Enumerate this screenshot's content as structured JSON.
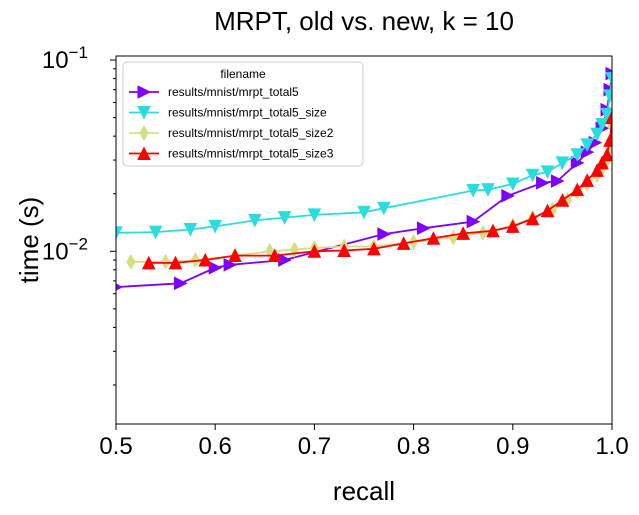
{
  "chart_data": {
    "type": "line",
    "title": "MRPT, old vs. new, k = 10",
    "xlabel": "recall",
    "ylabel": "time (s)",
    "xlim": [
      0.5,
      1.0
    ],
    "ylim": [
      0.00125,
      0.105
    ],
    "yscale": "log",
    "grid": false,
    "legend_position": "top-left",
    "legend_title": "filename",
    "x_ticks": [
      "0.5",
      "0.6",
      "0.7",
      "0.8",
      "0.9",
      "1.0"
    ],
    "y_ticks": {
      "base": "10",
      "exp_low": "−2",
      "exp_high": "−1"
    },
    "series": [
      {
        "name": "results/mnist/mrpt_total5",
        "color": "#7f00ff",
        "marker": "triangle-right",
        "points": [
          [
            0.5,
            0.0065
          ],
          [
            0.565,
            0.0068
          ],
          [
            0.6,
            0.0082
          ],
          [
            0.615,
            0.0085
          ],
          [
            0.67,
            0.009
          ],
          [
            0.77,
            0.0123
          ],
          [
            0.81,
            0.0132
          ],
          [
            0.86,
            0.0143
          ],
          [
            0.895,
            0.0195
          ],
          [
            0.93,
            0.0228
          ],
          [
            0.945,
            0.0233
          ],
          [
            0.965,
            0.029
          ],
          [
            0.975,
            0.033
          ],
          [
            0.983,
            0.037
          ],
          [
            0.99,
            0.044
          ],
          [
            0.995,
            0.055
          ],
          [
            0.998,
            0.07
          ],
          [
            1.0,
            0.085
          ]
        ]
      },
      {
        "name": "results/mnist/mrpt_total5_size",
        "color": "#2adddd",
        "marker": "triangle-down",
        "points": [
          [
            0.5,
            0.0125
          ],
          [
            0.54,
            0.0126
          ],
          [
            0.575,
            0.013
          ],
          [
            0.6,
            0.0135
          ],
          [
            0.64,
            0.0145
          ],
          [
            0.67,
            0.015
          ],
          [
            0.7,
            0.0155
          ],
          [
            0.75,
            0.016
          ],
          [
            0.77,
            0.0168
          ],
          [
            0.86,
            0.0208
          ],
          [
            0.875,
            0.021
          ],
          [
            0.9,
            0.0225
          ],
          [
            0.92,
            0.025
          ],
          [
            0.935,
            0.026
          ],
          [
            0.95,
            0.029
          ],
          [
            0.965,
            0.032
          ],
          [
            0.975,
            0.036
          ],
          [
            0.985,
            0.041
          ],
          [
            0.99,
            0.046
          ],
          [
            0.995,
            0.052
          ],
          [
            0.998,
            0.065
          ],
          [
            1.0,
            0.08
          ]
        ]
      },
      {
        "name": "results/mnist/mrpt_total5_size2",
        "color": "#d4dd80",
        "marker": "thin-diamond",
        "points": [
          [
            0.515,
            0.0088
          ],
          [
            0.55,
            0.0088
          ],
          [
            0.58,
            0.009
          ],
          [
            0.62,
            0.0095
          ],
          [
            0.655,
            0.01
          ],
          [
            0.68,
            0.0102
          ],
          [
            0.7,
            0.0104
          ],
          [
            0.73,
            0.0106
          ],
          [
            0.76,
            0.0106
          ],
          [
            0.8,
            0.0112
          ],
          [
            0.84,
            0.0118
          ],
          [
            0.87,
            0.0125
          ],
          [
            0.9,
            0.0136
          ],
          [
            0.92,
            0.015
          ],
          [
            0.94,
            0.0165
          ],
          [
            0.955,
            0.0185
          ],
          [
            0.965,
            0.0205
          ],
          [
            0.975,
            0.0225
          ],
          [
            0.985,
            0.025
          ],
          [
            0.99,
            0.027
          ],
          [
            0.995,
            0.03
          ],
          [
            0.998,
            0.035
          ],
          [
            1.0,
            0.045
          ]
        ]
      },
      {
        "name": "results/mnist/mrpt_total5_size3",
        "color": "#ff0000",
        "marker": "triangle-up",
        "points": [
          [
            0.533,
            0.0087
          ],
          [
            0.56,
            0.0087
          ],
          [
            0.59,
            0.009
          ],
          [
            0.62,
            0.0095
          ],
          [
            0.66,
            0.0095
          ],
          [
            0.7,
            0.01
          ],
          [
            0.73,
            0.0101
          ],
          [
            0.76,
            0.0103
          ],
          [
            0.79,
            0.011
          ],
          [
            0.82,
            0.0117
          ],
          [
            0.85,
            0.0124
          ],
          [
            0.88,
            0.0128
          ],
          [
            0.9,
            0.0135
          ],
          [
            0.92,
            0.0148
          ],
          [
            0.935,
            0.0163
          ],
          [
            0.95,
            0.0185
          ],
          [
            0.965,
            0.021
          ],
          [
            0.975,
            0.0235
          ],
          [
            0.985,
            0.0265
          ],
          [
            0.99,
            0.029
          ],
          [
            0.995,
            0.032
          ],
          [
            0.998,
            0.038
          ],
          [
            1.0,
            0.05
          ]
        ]
      }
    ]
  }
}
